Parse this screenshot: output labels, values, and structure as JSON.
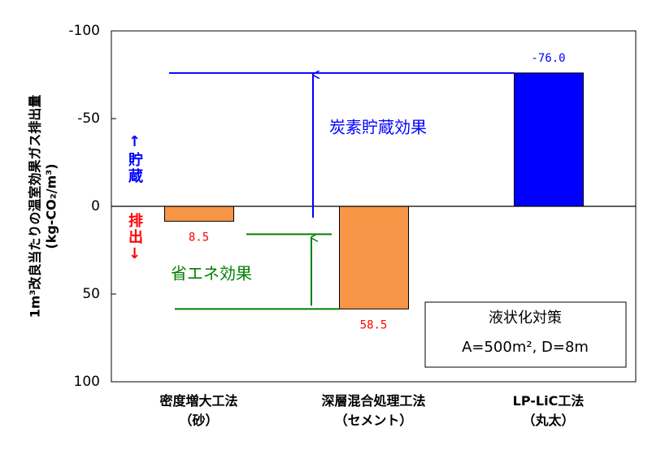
{
  "chart_data": {
    "type": "bar",
    "categories": [
      "密度増大工法\n（砂）",
      "深層混合処理工法\n（セメント）",
      "LP-LiC工法\n（丸太）"
    ],
    "values": [
      8.5,
      58.5,
      -76.0
    ],
    "value_labels": [
      "8.5",
      "58.5",
      "-76.0"
    ],
    "colors": [
      "#f79646",
      "#f79646",
      "#0000ff"
    ],
    "label_colors": [
      "#ff0000",
      "#ff0000",
      "#0000ff"
    ],
    "ylim": [
      -100,
      100
    ],
    "yticks": [
      -100,
      -50,
      0,
      50,
      100
    ],
    "y_inverted": true,
    "ylabel": [
      "1m³改良当たりの温室効果ガス排出量",
      "(kg-CO₂/m³)"
    ],
    "storage_label": "↑貯蔵",
    "emission_label": "排出↓",
    "carbon_effect_label": "炭素貯蔵効果",
    "energy_effect_label": "省エネ効果",
    "box_title": "液状化対策",
    "box_text": "A=500m², D=8m"
  }
}
